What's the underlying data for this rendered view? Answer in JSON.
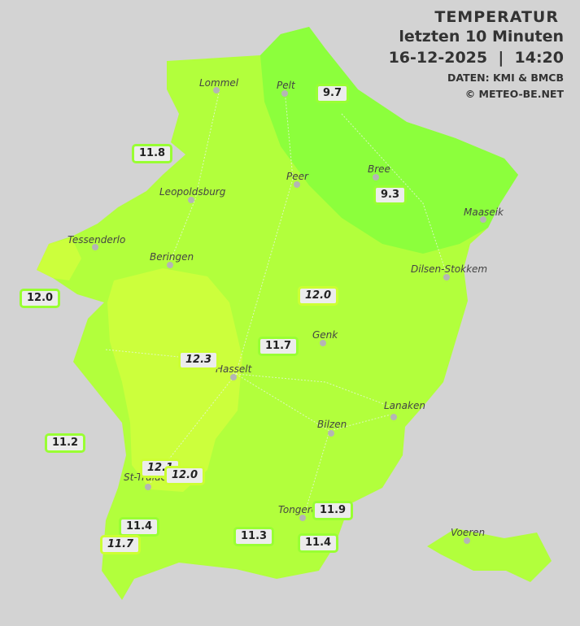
{
  "header": {
    "title": "TEMPERATUR",
    "subtitle": "letzten 10 Minuten",
    "datetime": "16-12-2025  |  14:20",
    "source": "DATEN: KMI & BMCB",
    "copyright": "© METEO-BE.NET"
  },
  "colors": {
    "background": "#d3d3d3",
    "zone_cool": "#8cff3c",
    "zone_mid": "#b2ff3c",
    "zone_warm": "#ccff3c"
  },
  "cities": [
    "Lommel",
    "Pelt",
    "Peer",
    "Bree",
    "Leopoldsburg",
    "Maaseik",
    "Tessenderlo",
    "Beringen",
    "Dilsen-Stokkem",
    "Genk",
    "Hasselt",
    "Lanaken",
    "Bilzen",
    "St-Truiden",
    "Tongeren",
    "Voeren"
  ],
  "readings": [
    "9.7",
    "11.8",
    "9.3",
    "12.0",
    "12.0",
    "11.7",
    "12.3",
    "11.2",
    "12.1",
    "12.0",
    "11.9",
    "11.4",
    "11.7",
    "11.3",
    "11.4"
  ]
}
